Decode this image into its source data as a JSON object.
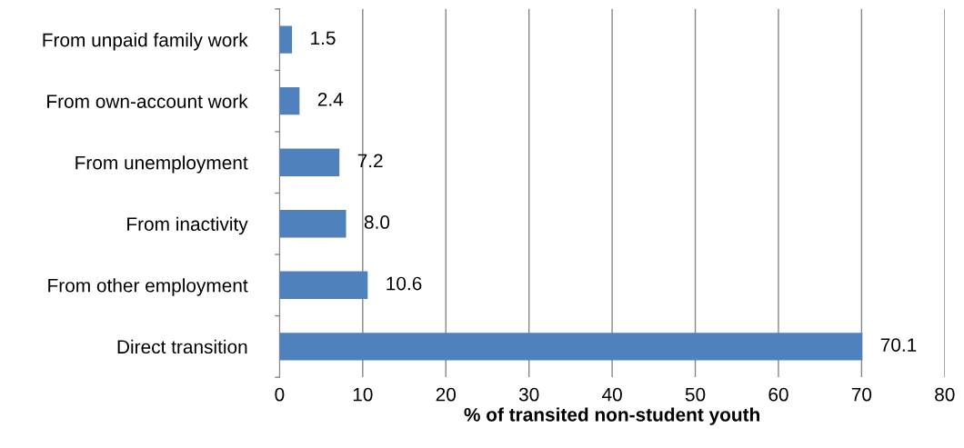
{
  "chart_data": {
    "type": "bar",
    "orientation": "horizontal",
    "xlabel": "% of transited non-student youth",
    "categories": [
      "From unpaid family work",
      "From own-account work",
      "From unemployment",
      "From inactivity",
      "From other employment",
      "Direct transition"
    ],
    "values": [
      1.5,
      2.4,
      7.2,
      8.0,
      10.6,
      70.1
    ],
    "value_labels": [
      "1.5",
      "2.4",
      "7.2",
      "8.0",
      "10.6",
      "70.1"
    ],
    "color": "#4f81bd",
    "xlim": [
      0,
      80
    ],
    "xticks": [
      0,
      10,
      20,
      30,
      40,
      50,
      60,
      70,
      80
    ],
    "grid": "x"
  }
}
